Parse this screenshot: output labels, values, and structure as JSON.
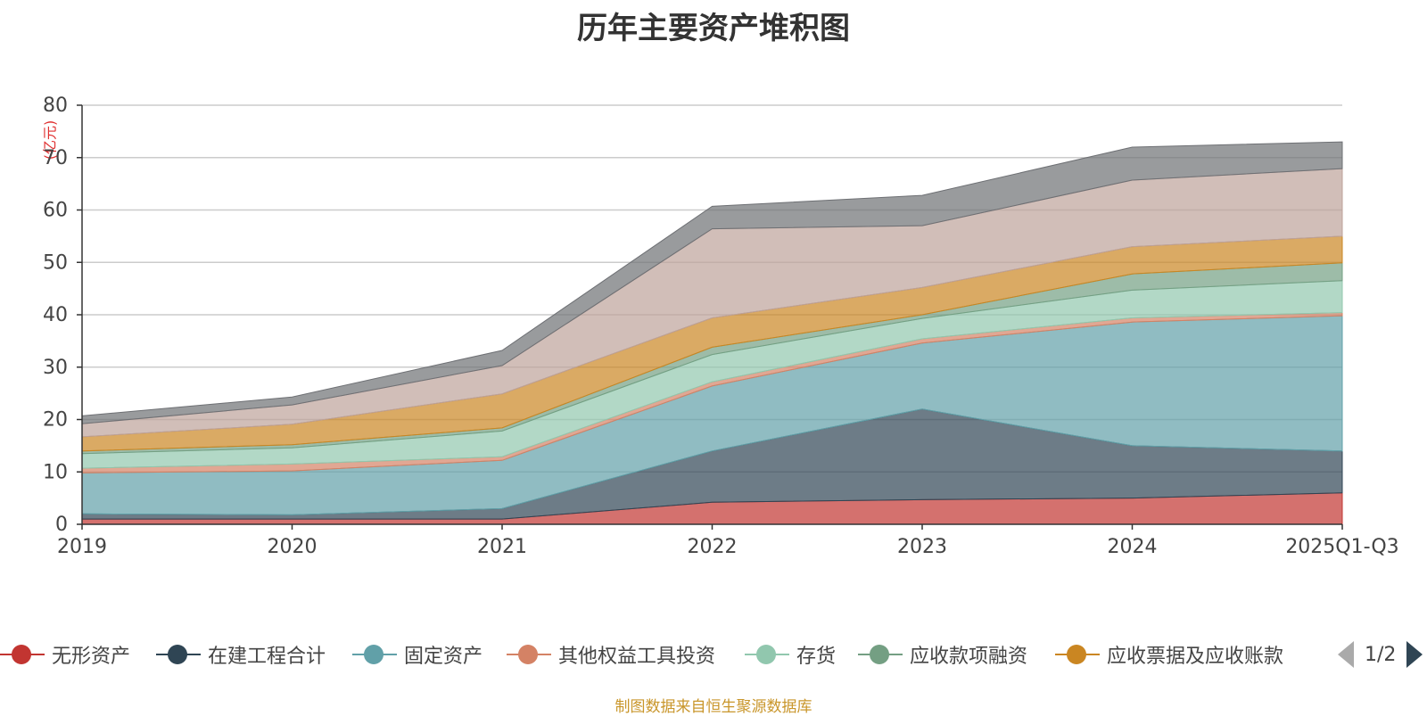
{
  "chart_data": {
    "type": "area",
    "stacked": true,
    "title": "历年主要资产堆积图",
    "ylabel": "(亿元)",
    "ylim": [
      0,
      80
    ],
    "yticks": [
      0,
      10,
      20,
      30,
      40,
      50,
      60,
      70,
      80
    ],
    "categories": [
      "2019",
      "2020",
      "2021",
      "2022",
      "2023",
      "2024",
      "2025Q1-Q3"
    ],
    "series": [
      {
        "name": "无形资产",
        "color": "#c23531",
        "values": [
          1.0,
          1.0,
          1.0,
          4.2,
          4.7,
          5.0,
          6.0
        ],
        "in_legend": true
      },
      {
        "name": "在建工程合计",
        "color": "#2f4554",
        "values": [
          1.0,
          0.8,
          2.0,
          9.8,
          17.3,
          10.0,
          8.0
        ],
        "in_legend": true
      },
      {
        "name": "固定资产",
        "color": "#61a0a8",
        "values": [
          7.8,
          8.4,
          9.2,
          12.4,
          12.6,
          23.6,
          25.8
        ],
        "in_legend": true
      },
      {
        "name": "其他权益工具投资",
        "color": "#d48265",
        "values": [
          0.9,
          1.3,
          0.7,
          0.8,
          0.8,
          0.8,
          0.6
        ],
        "in_legend": true
      },
      {
        "name": "存货",
        "color": "#91c7ae",
        "values": [
          2.8,
          3.1,
          4.9,
          5.2,
          3.9,
          5.3,
          6.1
        ],
        "in_legend": true
      },
      {
        "name": "应收款项融资",
        "color": "#749f83",
        "values": [
          0.5,
          0.6,
          0.6,
          1.4,
          0.7,
          3.1,
          3.4
        ],
        "in_legend": true
      },
      {
        "name": "应收票据及应收账款",
        "color": "#ca8622",
        "values": [
          2.7,
          3.9,
          6.5,
          5.6,
          5.2,
          5.2,
          5.1
        ],
        "in_legend": true
      },
      {
        "name": "series-8",
        "color": "#bda29a",
        "values": [
          2.5,
          3.7,
          5.4,
          17.0,
          11.8,
          12.7,
          12.9
        ],
        "in_legend": false
      },
      {
        "name": "series-9",
        "color": "#6e7074",
        "values": [
          1.5,
          1.5,
          2.9,
          4.3,
          5.8,
          6.3,
          5.1
        ],
        "in_legend": false
      }
    ]
  },
  "legend": {
    "page_indicator": "1/2"
  },
  "source_note": "制图数据来自恒生聚源数据库"
}
